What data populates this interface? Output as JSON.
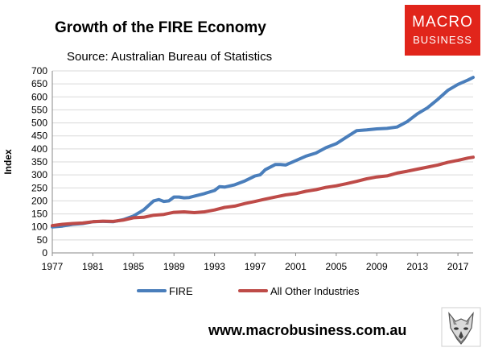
{
  "header": {
    "title": "Growth of the FIRE Economy",
    "subtitle": "Source: Australian Bureau of Statistics"
  },
  "logo": {
    "line1": "MACRO",
    "line2": "BUSINESS"
  },
  "footer": {
    "website": "www.macrobusiness.com.au"
  },
  "colors": {
    "fire": "#4a7ebb",
    "other": "#be4b48",
    "grid": "#d9d9d9",
    "logo_bg": "#e1251b"
  },
  "chart_data": {
    "type": "line",
    "title": "Growth of the FIRE Economy",
    "subtitle": "Source: Australian Bureau of Statistics",
    "xlabel": "",
    "ylabel": "Index",
    "xlim": [
      1977,
      2018.5
    ],
    "ylim": [
      0,
      700
    ],
    "x_ticks": [
      "1977",
      "1981",
      "1985",
      "1989",
      "1993",
      "1997",
      "2001",
      "2005",
      "2009",
      "2013",
      "2017"
    ],
    "y_ticks": [
      0,
      50,
      100,
      150,
      200,
      250,
      300,
      350,
      400,
      450,
      500,
      550,
      600,
      650,
      700
    ],
    "grid": true,
    "legend_position": "bottom",
    "series": [
      {
        "name": "FIRE",
        "color": "#4a7ebb",
        "points": [
          [
            1977,
            100
          ],
          [
            1978,
            103
          ],
          [
            1979,
            110
          ],
          [
            1980,
            113
          ],
          [
            1981,
            120
          ],
          [
            1982,
            121
          ],
          [
            1983,
            120
          ],
          [
            1984,
            128
          ],
          [
            1985,
            142
          ],
          [
            1986,
            165
          ],
          [
            1987,
            200
          ],
          [
            1987.5,
            205
          ],
          [
            1988,
            198
          ],
          [
            1988.5,
            200
          ],
          [
            1989,
            215
          ],
          [
            1989.5,
            215
          ],
          [
            1990,
            212
          ],
          [
            1990.5,
            213
          ],
          [
            1991,
            218
          ],
          [
            1992,
            228
          ],
          [
            1993,
            240
          ],
          [
            1993.5,
            255
          ],
          [
            1994,
            253
          ],
          [
            1995,
            262
          ],
          [
            1996,
            277
          ],
          [
            1997,
            296
          ],
          [
            1997.5,
            300
          ],
          [
            1998,
            320
          ],
          [
            1999,
            340
          ],
          [
            1999.5,
            340
          ],
          [
            2000,
            338
          ],
          [
            2001,
            355
          ],
          [
            2002,
            372
          ],
          [
            2003,
            384
          ],
          [
            2004,
            405
          ],
          [
            2005,
            420
          ],
          [
            2006,
            445
          ],
          [
            2007,
            470
          ],
          [
            2008,
            473
          ],
          [
            2009,
            477
          ],
          [
            2010,
            479
          ],
          [
            2011,
            484
          ],
          [
            2012,
            505
          ],
          [
            2013,
            535
          ],
          [
            2014,
            558
          ],
          [
            2015,
            590
          ],
          [
            2016,
            625
          ],
          [
            2017,
            648
          ],
          [
            2018,
            665
          ],
          [
            2018.5,
            675
          ]
        ]
      },
      {
        "name": "All Other Industries",
        "color": "#be4b48",
        "points": [
          [
            1977,
            105
          ],
          [
            1978,
            110
          ],
          [
            1979,
            113
          ],
          [
            1980,
            115
          ],
          [
            1981,
            120
          ],
          [
            1982,
            122
          ],
          [
            1983,
            121
          ],
          [
            1984,
            126
          ],
          [
            1985,
            135
          ],
          [
            1986,
            137
          ],
          [
            1987,
            145
          ],
          [
            1988,
            148
          ],
          [
            1989,
            156
          ],
          [
            1990,
            158
          ],
          [
            1991,
            155
          ],
          [
            1992,
            158
          ],
          [
            1993,
            165
          ],
          [
            1994,
            175
          ],
          [
            1995,
            180
          ],
          [
            1996,
            190
          ],
          [
            1997,
            198
          ],
          [
            1998,
            207
          ],
          [
            1999,
            215
          ],
          [
            2000,
            223
          ],
          [
            2001,
            228
          ],
          [
            2002,
            237
          ],
          [
            2003,
            243
          ],
          [
            2004,
            252
          ],
          [
            2005,
            258
          ],
          [
            2006,
            266
          ],
          [
            2007,
            275
          ],
          [
            2008,
            285
          ],
          [
            2009,
            292
          ],
          [
            2010,
            296
          ],
          [
            2011,
            307
          ],
          [
            2012,
            314
          ],
          [
            2013,
            322
          ],
          [
            2014,
            330
          ],
          [
            2015,
            338
          ],
          [
            2016,
            348
          ],
          [
            2017,
            356
          ],
          [
            2018,
            365
          ],
          [
            2018.5,
            368
          ]
        ]
      }
    ]
  }
}
